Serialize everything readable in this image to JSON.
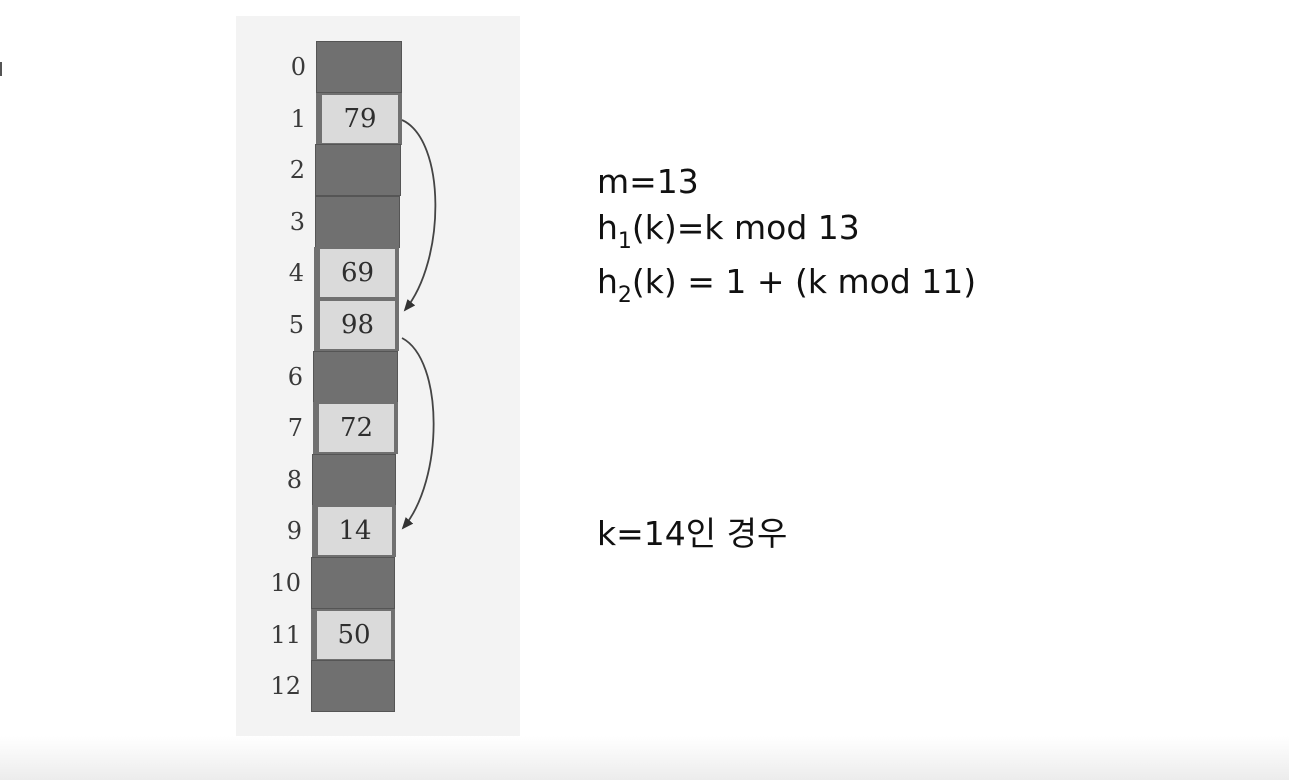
{
  "hash_table": {
    "indices": [
      "0",
      "1",
      "2",
      "3",
      "4",
      "5",
      "6",
      "7",
      "8",
      "9",
      "10",
      "11",
      "12"
    ],
    "slots": [
      "",
      "79",
      "",
      "",
      "69",
      "98",
      "",
      "72",
      "",
      "14",
      "",
      "50",
      ""
    ]
  },
  "formulas": {
    "m_line": "m=13",
    "h1_prefix": "h",
    "h1_sub": "1",
    "h1_rest": "(k)=k mod 13",
    "h2_prefix": "h",
    "h2_sub": "2",
    "h2_rest": "(k) = 1 + (k mod 11)"
  },
  "case_label": "k=14인 경우",
  "colors": {
    "empty_slot": "#707070",
    "filled_slot": "#dadada",
    "panel": "#f3f3f3"
  }
}
